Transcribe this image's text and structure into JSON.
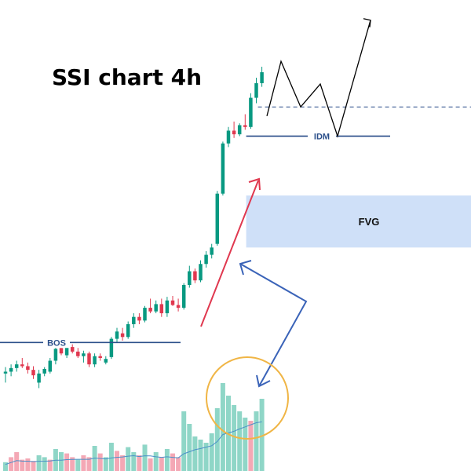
{
  "chart_data": {
    "type": "candlestick",
    "title": "SSI chart 4h",
    "colors": {
      "up": "#089981",
      "down": "#e0384f",
      "vol_up": "#8fd6c7",
      "vol_down": "#f4a8b5",
      "level_line": "#2b4f8a",
      "fvg_fill": "#cfe0f8",
      "red_arrow": "#e0384f",
      "blue_arrow": "#3a63b8",
      "circle": "#f0b545",
      "projection": "#000000"
    },
    "candles": [
      {
        "o": 38,
        "h": 45,
        "l": 28,
        "c": 40
      },
      {
        "o": 40,
        "h": 48,
        "l": 35,
        "c": 44
      },
      {
        "o": 44,
        "h": 52,
        "l": 40,
        "c": 48
      },
      {
        "o": 48,
        "h": 55,
        "l": 44,
        "c": 46
      },
      {
        "o": 46,
        "h": 50,
        "l": 38,
        "c": 42
      },
      {
        "o": 42,
        "h": 46,
        "l": 32,
        "c": 36
      },
      {
        "o": 28,
        "h": 42,
        "l": 22,
        "c": 38
      },
      {
        "o": 38,
        "h": 45,
        "l": 35,
        "c": 43
      },
      {
        "o": 40,
        "h": 55,
        "l": 38,
        "c": 52
      },
      {
        "o": 52,
        "h": 68,
        "l": 48,
        "c": 65
      },
      {
        "o": 66,
        "h": 68,
        "l": 58,
        "c": 60
      },
      {
        "o": 58,
        "h": 70,
        "l": 55,
        "c": 67
      },
      {
        "o": 67,
        "h": 70,
        "l": 60,
        "c": 62
      },
      {
        "o": 62,
        "h": 66,
        "l": 55,
        "c": 57
      },
      {
        "o": 57,
        "h": 63,
        "l": 50,
        "c": 60
      },
      {
        "o": 60,
        "h": 62,
        "l": 45,
        "c": 48
      },
      {
        "o": 48,
        "h": 60,
        "l": 45,
        "c": 57
      },
      {
        "o": 57,
        "h": 60,
        "l": 52,
        "c": 55
      },
      {
        "o": 50,
        "h": 57,
        "l": 48,
        "c": 54
      },
      {
        "o": 56,
        "h": 78,
        "l": 54,
        "c": 76
      },
      {
        "o": 76,
        "h": 88,
        "l": 72,
        "c": 84
      },
      {
        "o": 82,
        "h": 88,
        "l": 74,
        "c": 78
      },
      {
        "o": 78,
        "h": 95,
        "l": 76,
        "c": 92
      },
      {
        "o": 92,
        "h": 104,
        "l": 88,
        "c": 100
      },
      {
        "o": 100,
        "h": 104,
        "l": 92,
        "c": 96
      },
      {
        "o": 96,
        "h": 112,
        "l": 94,
        "c": 110
      },
      {
        "o": 110,
        "h": 120,
        "l": 104,
        "c": 106
      },
      {
        "o": 106,
        "h": 118,
        "l": 104,
        "c": 114
      },
      {
        "o": 114,
        "h": 120,
        "l": 100,
        "c": 104
      },
      {
        "o": 104,
        "h": 122,
        "l": 100,
        "c": 118
      },
      {
        "o": 118,
        "h": 123,
        "l": 112,
        "c": 113
      },
      {
        "o": 113,
        "h": 120,
        "l": 106,
        "c": 110
      },
      {
        "o": 110,
        "h": 137,
        "l": 108,
        "c": 135
      },
      {
        "o": 135,
        "h": 156,
        "l": 132,
        "c": 150
      },
      {
        "o": 150,
        "h": 153,
        "l": 137,
        "c": 140
      },
      {
        "o": 140,
        "h": 162,
        "l": 138,
        "c": 158
      },
      {
        "o": 158,
        "h": 172,
        "l": 154,
        "c": 168
      },
      {
        "o": 168,
        "h": 180,
        "l": 164,
        "c": 176
      },
      {
        "o": 180,
        "h": 238,
        "l": 178,
        "c": 235
      },
      {
        "o": 235,
        "h": 292,
        "l": 233,
        "c": 290
      },
      {
        "o": 290,
        "h": 308,
        "l": 286,
        "c": 304
      },
      {
        "o": 304,
        "h": 314,
        "l": 296,
        "c": 300
      },
      {
        "o": 300,
        "h": 312,
        "l": 298,
        "c": 310
      },
      {
        "o": 310,
        "h": 322,
        "l": 305,
        "c": 308
      },
      {
        "o": 308,
        "h": 345,
        "l": 306,
        "c": 340
      },
      {
        "o": 340,
        "h": 362,
        "l": 334,
        "c": 356
      },
      {
        "o": 356,
        "h": 374,
        "l": 352,
        "c": 368
      }
    ],
    "volumes": [
      {
        "v": 14,
        "up": true
      },
      {
        "v": 22,
        "up": false
      },
      {
        "v": 30,
        "up": false
      },
      {
        "v": 18,
        "up": false
      },
      {
        "v": 20,
        "up": false
      },
      {
        "v": 16,
        "up": false
      },
      {
        "v": 25,
        "up": true
      },
      {
        "v": 22,
        "up": true
      },
      {
        "v": 18,
        "up": false
      },
      {
        "v": 35,
        "up": true
      },
      {
        "v": 30,
        "up": true
      },
      {
        "v": 28,
        "up": false
      },
      {
        "v": 22,
        "up": false
      },
      {
        "v": 18,
        "up": true
      },
      {
        "v": 25,
        "up": false
      },
      {
        "v": 22,
        "up": false
      },
      {
        "v": 40,
        "up": true
      },
      {
        "v": 28,
        "up": false
      },
      {
        "v": 22,
        "up": true
      },
      {
        "v": 45,
        "up": true
      },
      {
        "v": 32,
        "up": false
      },
      {
        "v": 25,
        "up": false
      },
      {
        "v": 38,
        "up": true
      },
      {
        "v": 30,
        "up": true
      },
      {
        "v": 25,
        "up": false
      },
      {
        "v": 42,
        "up": true
      },
      {
        "v": 20,
        "up": false
      },
      {
        "v": 30,
        "up": true
      },
      {
        "v": 22,
        "up": false
      },
      {
        "v": 35,
        "up": true
      },
      {
        "v": 28,
        "up": false
      },
      {
        "v": 22,
        "up": false
      },
      {
        "v": 95,
        "up": true
      },
      {
        "v": 75,
        "up": true
      },
      {
        "v": 55,
        "up": true
      },
      {
        "v": 50,
        "up": true
      },
      {
        "v": 45,
        "up": true
      },
      {
        "v": 60,
        "up": true
      },
      {
        "v": 100,
        "up": true
      },
      {
        "v": 140,
        "up": true
      },
      {
        "v": 120,
        "up": true
      },
      {
        "v": 105,
        "up": true
      },
      {
        "v": 95,
        "up": true
      },
      {
        "v": 85,
        "up": true
      },
      {
        "v": 80,
        "up": false
      },
      {
        "v": 95,
        "up": true
      },
      {
        "v": 115,
        "up": true
      }
    ],
    "levels": {
      "bos": {
        "label": "BOS",
        "value": 72
      },
      "idm": {
        "label": "IDM",
        "value": 298
      },
      "dashed": {
        "value": 330
      }
    },
    "fvg": {
      "label": "FVG",
      "low": 176,
      "high": 233
    },
    "projection": [
      320,
      380,
      330,
      355,
      298,
      425
    ]
  }
}
